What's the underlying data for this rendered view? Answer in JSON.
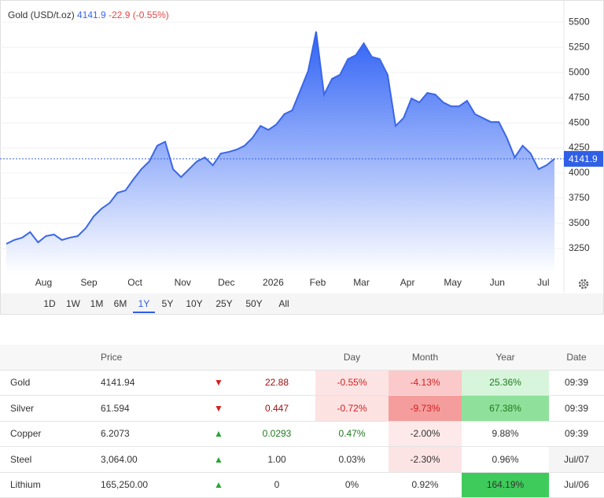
{
  "chart_data": {
    "type": "area",
    "title": "Gold (USD/t.oz)",
    "change_label": "-22.9 (-0.55%)",
    "series": [
      {
        "name": "Gold",
        "color": "#3a66e8",
        "values": [
          3297,
          3336,
          3359,
          3414,
          3312,
          3375,
          3390,
          3336,
          3359,
          3375,
          3453,
          3570,
          3648,
          3703,
          3805,
          3828,
          3938,
          4039,
          4117,
          4273,
          4312,
          4039,
          3961,
          4039,
          4117,
          4156,
          4078,
          4195,
          4211,
          4234,
          4273,
          4352,
          4469,
          4430,
          4484,
          4586,
          4625,
          4820,
          5016,
          5406,
          4781,
          4937,
          4977,
          5133,
          5172,
          5289,
          5156,
          5133,
          4977,
          4469,
          4547,
          4742,
          4703,
          4797,
          4781,
          4703,
          4664,
          4664,
          4719,
          4586,
          4547,
          4508,
          4508,
          4352,
          4156,
          4273,
          4195,
          4039,
          4078,
          4141.9
        ]
      }
    ],
    "ylim": [
      3000,
      5720
    ],
    "yticks": [
      3250,
      3500,
      3750,
      4000,
      4250,
      4500,
      4750,
      5000,
      5250,
      5500
    ],
    "grid": true,
    "xlim": [
      0,
      69
    ],
    "xticks": [
      {
        "value": 4.7,
        "label": "Aug"
      },
      {
        "value": 10.4,
        "label": "Sep"
      },
      {
        "value": 16.2,
        "label": "Oct"
      },
      {
        "value": 22.2,
        "label": "Nov"
      },
      {
        "value": 27.7,
        "label": "Dec"
      },
      {
        "value": 33.6,
        "label": "2026"
      },
      {
        "value": 39.2,
        "label": "Feb"
      },
      {
        "value": 44.7,
        "label": "Mar"
      },
      {
        "value": 50.5,
        "label": "Apr"
      },
      {
        "value": 56.2,
        "label": "May"
      },
      {
        "value": 61.8,
        "label": "Jun"
      },
      {
        "value": 67.6,
        "label": "Jul"
      }
    ],
    "ranges": [
      "1D",
      "1W",
      "1M",
      "6M",
      "1Y",
      "5Y",
      "10Y",
      "25Y",
      "50Y",
      "All"
    ],
    "active_range": 4
  },
  "table": {
    "headers": {
      "price": "Price",
      "day": "Day",
      "month": "Month",
      "year": "Year",
      "date": "Date"
    },
    "rows": [
      {
        "name": "Gold",
        "price": "4141.94",
        "change": "22.88",
        "day": "-0.55%",
        "month": "-4.13%",
        "year": "25.36%",
        "date": "09:39"
      },
      {
        "name": "Silver",
        "price": "61.594",
        "change": "0.447",
        "day": "-0.72%",
        "month": "-9.73%",
        "year": "67.38%",
        "date": "09:39"
      },
      {
        "name": "Copper",
        "price": "6.2073",
        "change": "0.0293",
        "day": "0.47%",
        "month": "-2.00%",
        "year": "9.88%",
        "date": "09:39"
      },
      {
        "name": "Steel",
        "price": "3,064.00",
        "change": "1.00",
        "day": "0.03%",
        "month": "-2.30%",
        "year": "0.96%",
        "date": "Jul/07"
      },
      {
        "name": "Lithium",
        "price": "165,250.00",
        "change": "0",
        "day": "0%",
        "month": "0.92%",
        "year": "164.19%",
        "date": "Jul/06"
      }
    ]
  }
}
